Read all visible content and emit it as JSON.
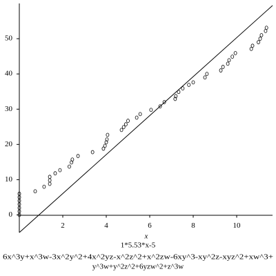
{
  "chart_data": {
    "type": "scatter",
    "x_label": "x",
    "captions": [
      "1*5.53*x-5",
      "6x^3y+x^3w-3x^2y^2+4x^2yz-x^2z^2+x^2zw-6xy^3-xy^2z-xyz^2+xw^3+",
      "y^3w+y^2z^2+6yzw^2+z^3w"
    ],
    "xlim": [
      0,
      11.65
    ],
    "ylim": [
      -5,
      60
    ],
    "xticks": [
      2,
      4,
      6,
      8,
      10
    ],
    "yticks": [
      0,
      10,
      20,
      30,
      40,
      50
    ],
    "series": [
      {
        "type": "scatter",
        "color": "#000000",
        "x": [
          0,
          0,
          0,
          0,
          0,
          0,
          0,
          0.73,
          1.14,
          1.4,
          1.4,
          1.4,
          1.65,
          1.87,
          2.3,
          2.4,
          2.44,
          2.7,
          3.37,
          3.87,
          3.94,
          4.0,
          4.03,
          4.06,
          4.7,
          4.8,
          4.9,
          5.0,
          5.4,
          5.56,
          6.06,
          6.48,
          6.67,
          7.17,
          7.2,
          7.33,
          7.52,
          7.8,
          8.0,
          8.54,
          8.63,
          9.27,
          9.37,
          9.59,
          9.65,
          9.8,
          9.94,
          10.67,
          10.73,
          11.0,
          11.08,
          11.14,
          11.33,
          11.37
        ],
        "values": [
          0,
          1,
          2,
          3,
          4,
          5,
          6,
          6.7,
          8,
          8.8,
          9.8,
          10.8,
          11.8,
          12.7,
          13.7,
          14.9,
          15.7,
          16.7,
          17.8,
          18.8,
          19.6,
          20.6,
          21.4,
          22.7,
          24.1,
          24.9,
          25.7,
          26.7,
          27.6,
          28.6,
          29.8,
          30.8,
          32,
          32.9,
          33.7,
          34.9,
          35.9,
          36.9,
          37.6,
          39,
          40,
          41,
          42,
          42.9,
          43.9,
          44.9,
          45.9,
          47.1,
          48,
          49,
          50,
          51,
          52.2,
          53.1
        ]
      },
      {
        "type": "line",
        "color": "#000000",
        "x": [
          0,
          11.65
        ],
        "values": [
          -5,
          59.42
        ]
      }
    ]
  }
}
